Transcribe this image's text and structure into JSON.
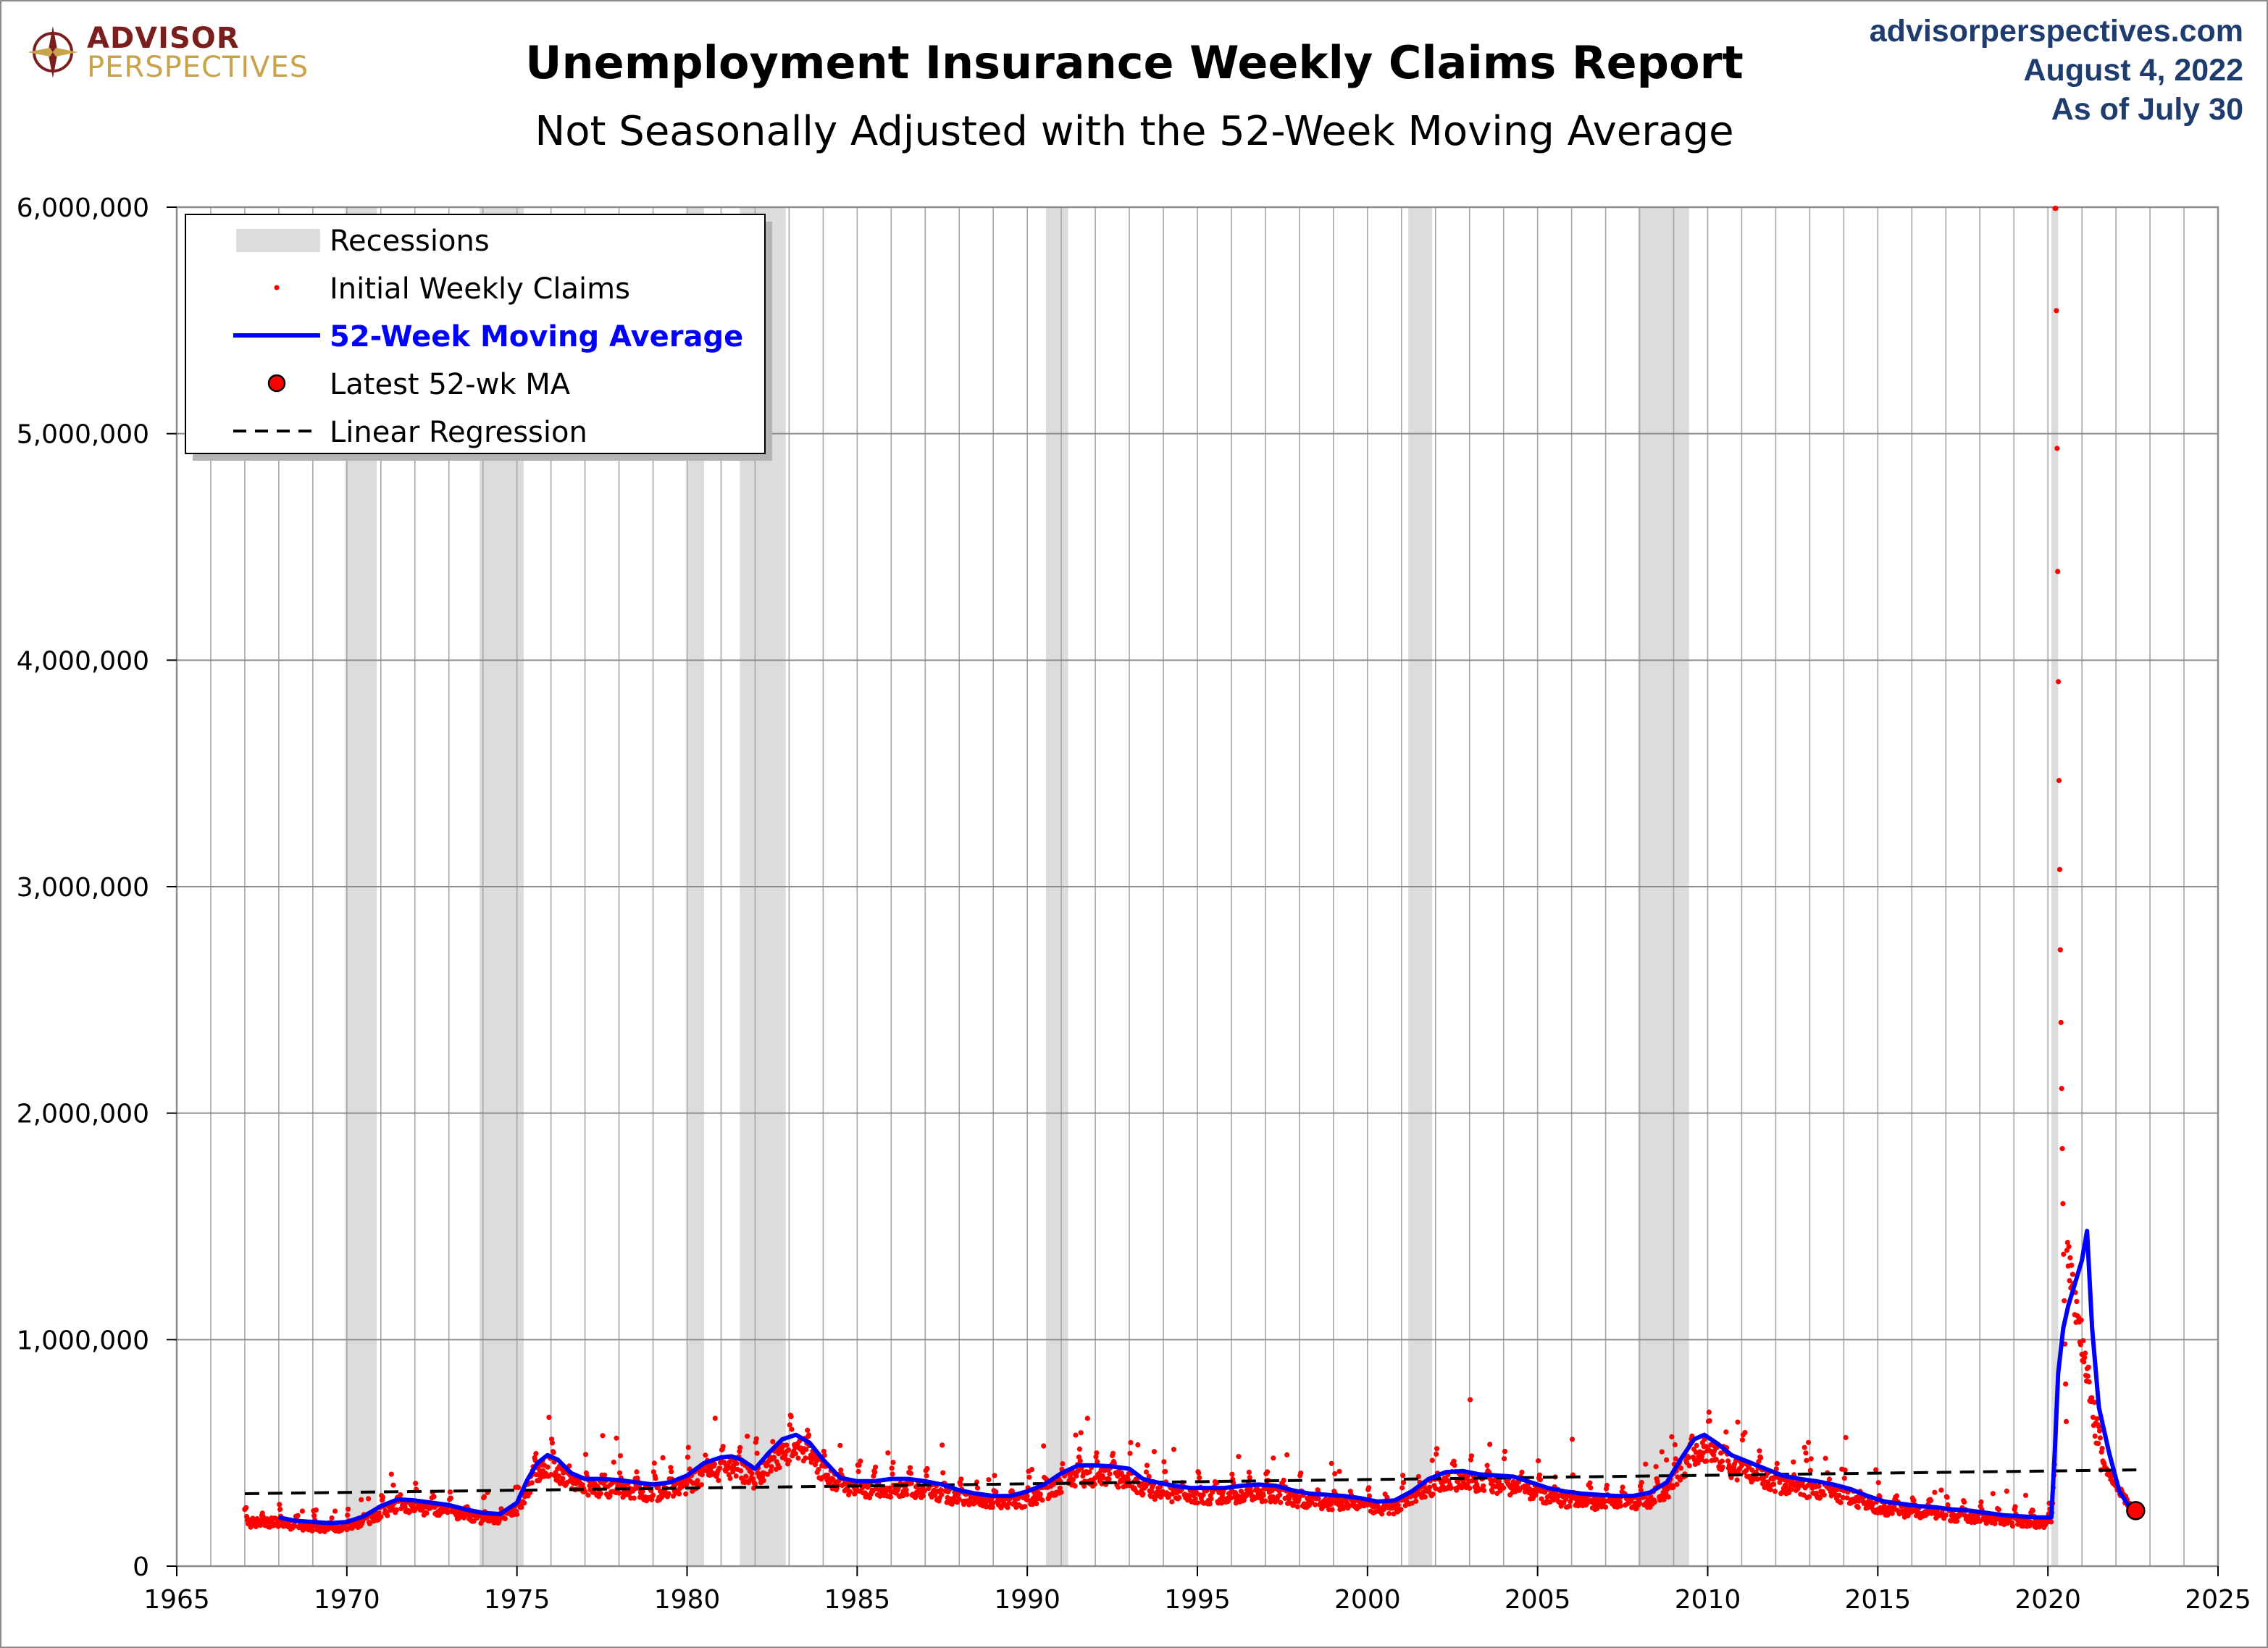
{
  "brand": {
    "name": "ADVISOR",
    "subname": "PERSPECTIVES"
  },
  "header": {
    "site": "advisorperspectives.com",
    "date": "August 4, 2022",
    "as_of": "As of July 30"
  },
  "chart_data": {
    "type": "scatter",
    "title": "Unemployment Insurance Weekly Claims Report",
    "subtitle": "Not Seasonally Adjusted with the 52-Week Moving Average",
    "xlim": [
      1965,
      2025
    ],
    "ylim": [
      0,
      6000000
    ],
    "xticks": [
      1965,
      1970,
      1975,
      1980,
      1985,
      1990,
      1995,
      2000,
      2005,
      2010,
      2015,
      2020,
      2025
    ],
    "yticks": [
      0,
      1000000,
      2000000,
      3000000,
      4000000,
      5000000,
      6000000
    ],
    "xtick_labels": [
      "1965",
      "1970",
      "1975",
      "1980",
      "1985",
      "1990",
      "1995",
      "2000",
      "2005",
      "2010",
      "2015",
      "2020",
      "2025"
    ],
    "ytick_labels": [
      "0",
      "1,000,000",
      "2,000,000",
      "3,000,000",
      "4,000,000",
      "5,000,000",
      "6,000,000"
    ],
    "grid": true,
    "legend_position": "top-left",
    "legend": [
      {
        "label": "Recessions",
        "kind": "band",
        "color": "#dcdcdc"
      },
      {
        "label": "Initial Weekly Claims",
        "kind": "dot",
        "color": "#ff0000"
      },
      {
        "label": "52-Week Moving Average",
        "kind": "line",
        "color": "#0000ff"
      },
      {
        "label": "Latest 52-wk MA",
        "kind": "marker",
        "color": "#ff0000"
      },
      {
        "label": "Linear Regression",
        "kind": "dashed",
        "color": "#000000"
      }
    ],
    "recessions": [
      [
        1969.95,
        1970.88
      ],
      [
        1973.9,
        1975.2
      ],
      [
        1980.0,
        1980.5
      ],
      [
        1981.55,
        1982.9
      ],
      [
        1990.55,
        1991.2
      ],
      [
        2001.2,
        2001.9
      ],
      [
        2007.95,
        2009.45
      ],
      [
        2020.1,
        2020.3
      ]
    ],
    "regression": {
      "x": [
        1967.0,
        2022.6
      ],
      "y": [
        320000,
        425000
      ]
    },
    "latest_ma": {
      "x": 2022.58,
      "y": 245000
    },
    "series": [
      {
        "name": "52-Week Moving Average",
        "color": "#0000ff",
        "x": [
          1968.0,
          1968.5,
          1969.0,
          1969.5,
          1970.0,
          1970.5,
          1971.0,
          1971.5,
          1972.0,
          1972.5,
          1973.0,
          1973.5,
          1974.0,
          1974.5,
          1975.0,
          1975.3,
          1975.6,
          1975.9,
          1976.2,
          1976.6,
          1977.0,
          1977.5,
          1978.0,
          1978.5,
          1979.0,
          1979.5,
          1980.0,
          1980.5,
          1981.0,
          1981.3,
          1981.6,
          1982.0,
          1982.4,
          1982.8,
          1983.2,
          1983.6,
          1984.0,
          1984.5,
          1985.0,
          1985.5,
          1986.0,
          1986.5,
          1987.0,
          1987.5,
          1988.0,
          1988.5,
          1989.0,
          1989.5,
          1990.0,
          1990.5,
          1991.0,
          1991.5,
          1992.0,
          1992.5,
          1993.0,
          1993.4,
          1993.8,
          1994.3,
          1994.8,
          1995.3,
          1995.8,
          1996.3,
          1996.8,
          1997.3,
          1997.8,
          1998.3,
          1998.8,
          1999.3,
          1999.8,
          2000.3,
          2000.8,
          2001.3,
          2001.8,
          2002.3,
          2002.8,
          2003.3,
          2003.8,
          2004.3,
          2004.8,
          2005.3,
          2005.8,
          2006.3,
          2006.8,
          2007.3,
          2007.8,
          2008.3,
          2008.8,
          2009.2,
          2009.6,
          2009.9,
          2010.3,
          2010.7,
          2011.2,
          2011.7,
          2012.2,
          2012.7,
          2013.2,
          2013.7,
          2014.2,
          2014.7,
          2015.2,
          2015.7,
          2016.2,
          2016.7,
          2017.2,
          2017.7,
          2018.2,
          2018.7,
          2019.2,
          2019.7,
          2020.1,
          2020.2,
          2020.3,
          2020.45,
          2020.6,
          2020.8,
          2021.0,
          2021.15,
          2021.3,
          2021.5,
          2021.8,
          2022.1,
          2022.4,
          2022.58
        ],
        "y": [
          215000,
          200000,
          195000,
          190000,
          195000,
          220000,
          265000,
          295000,
          290000,
          280000,
          270000,
          250000,
          235000,
          230000,
          280000,
          380000,
          455000,
          490000,
          470000,
          410000,
          385000,
          385000,
          380000,
          370000,
          360000,
          370000,
          400000,
          455000,
          480000,
          485000,
          470000,
          430000,
          500000,
          560000,
          580000,
          545000,
          470000,
          390000,
          375000,
          375000,
          385000,
          385000,
          375000,
          360000,
          335000,
          320000,
          310000,
          310000,
          330000,
          360000,
          410000,
          445000,
          445000,
          440000,
          430000,
          385000,
          370000,
          355000,
          345000,
          345000,
          345000,
          355000,
          360000,
          355000,
          335000,
          320000,
          315000,
          310000,
          300000,
          285000,
          290000,
          330000,
          385000,
          415000,
          420000,
          405000,
          400000,
          395000,
          370000,
          345000,
          330000,
          320000,
          315000,
          310000,
          310000,
          325000,
          370000,
          470000,
          560000,
          580000,
          540000,
          490000,
          460000,
          430000,
          400000,
          385000,
          375000,
          360000,
          340000,
          310000,
          285000,
          275000,
          265000,
          260000,
          250000,
          245000,
          235000,
          225000,
          220000,
          215000,
          215000,
          500000,
          850000,
          1050000,
          1150000,
          1250000,
          1350000,
          1480000,
          1050000,
          700000,
          500000,
          330000,
          260000,
          245000
        ]
      }
    ]
  }
}
